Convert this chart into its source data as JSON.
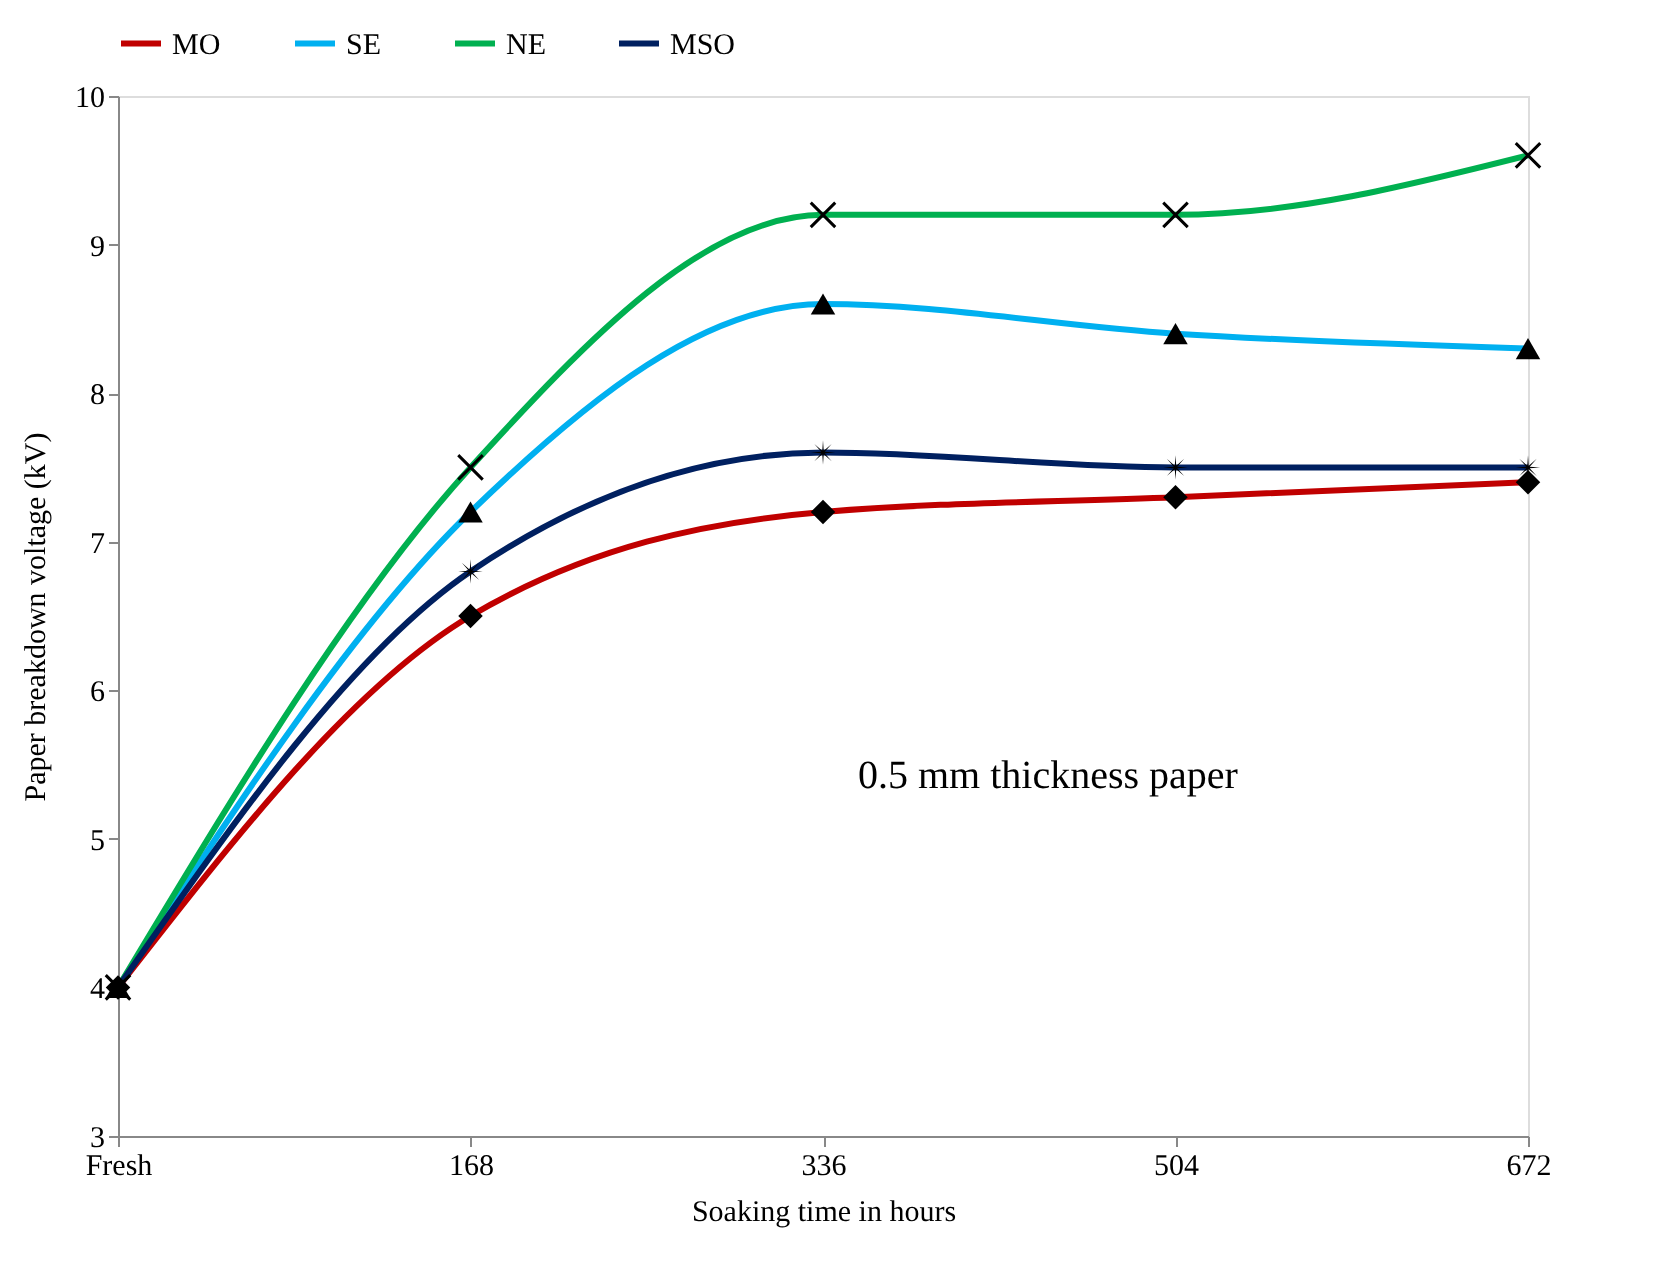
{
  "chart_data": {
    "type": "line",
    "xlabel": "Soaking time in hours",
    "ylabel": "Paper breakdown voltage (kV)",
    "categories": [
      "Fresh",
      "168",
      "336",
      "504",
      "672"
    ],
    "ylim": [
      3,
      10
    ],
    "yticks": [
      3,
      4,
      5,
      6,
      7,
      8,
      9,
      10
    ],
    "grid": false,
    "legend": "top",
    "annotations": [
      "0.5 mm thickness paper"
    ],
    "series": [
      {
        "name": "MO",
        "color": "#c00000",
        "marker": "diamond",
        "values": [
          4,
          6.5,
          7.2,
          7.3,
          7.4
        ]
      },
      {
        "name": "SE",
        "color": "#00b0f0",
        "marker": "triangle",
        "values": [
          4,
          7.2,
          8.6,
          8.4,
          8.3
        ]
      },
      {
        "name": "NE",
        "color": "#00b050",
        "marker": "cross",
        "values": [
          4,
          7.5,
          9.2,
          9.2,
          9.6
        ]
      },
      {
        "name": "MSO",
        "color": "#002060",
        "marker": "star",
        "values": [
          4,
          6.8,
          7.6,
          7.5,
          7.5
        ]
      }
    ]
  }
}
